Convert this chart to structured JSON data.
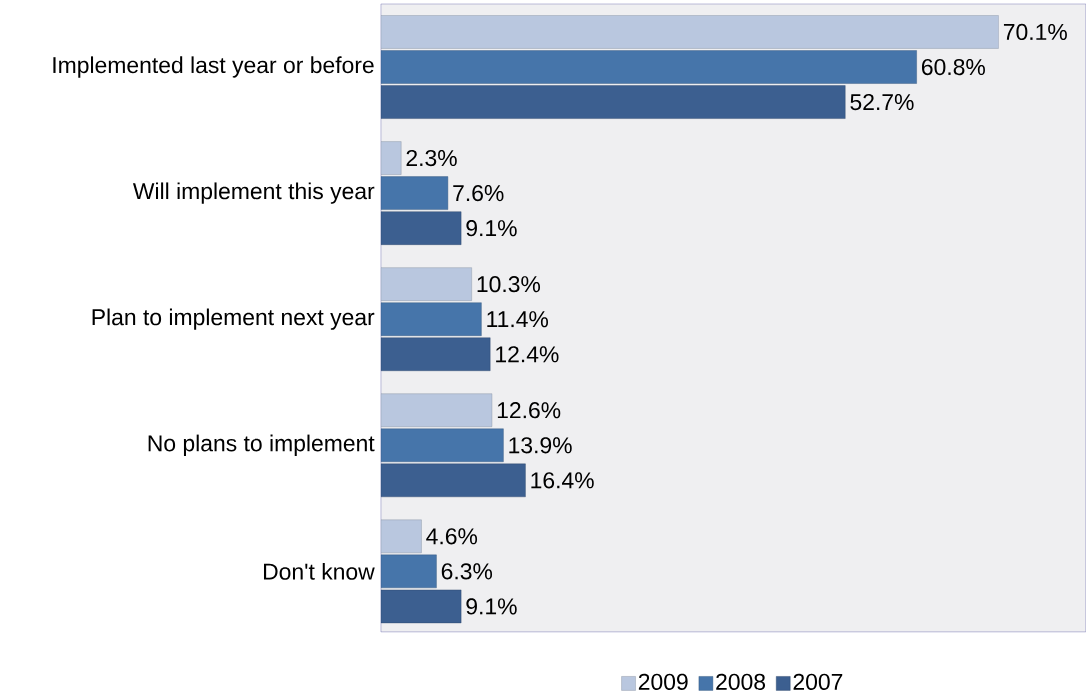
{
  "chart_data": {
    "type": "bar",
    "orientation": "horizontal",
    "categories": [
      "Implemented last year or before",
      "Will implement this year",
      "Plan to implement next year",
      "No plans to implement",
      "Don't know"
    ],
    "series": [
      {
        "name": "2009",
        "color": "#b9c7df",
        "values": [
          70.1,
          2.3,
          10.3,
          12.6,
          4.6
        ],
        "value_labels": [
          "70.1%",
          "2.3%",
          "10.3%",
          "12.6%",
          "4.6%"
        ]
      },
      {
        "name": "2008",
        "color": "#4675aa",
        "values": [
          60.8,
          7.6,
          11.4,
          13.9,
          6.3
        ],
        "value_labels": [
          "60.8%",
          "7.6%",
          "11.4%",
          "13.9%",
          "6.3%"
        ]
      },
      {
        "name": "2007",
        "color": "#3c5f90",
        "values": [
          52.7,
          9.1,
          12.4,
          16.4,
          9.1
        ],
        "value_labels": [
          "52.7%",
          "9.1%",
          "12.4%",
          "16.4%",
          "9.1%"
        ]
      }
    ],
    "xlim": [
      0,
      80
    ],
    "tick_labels": "y",
    "legend": "bottom"
  }
}
